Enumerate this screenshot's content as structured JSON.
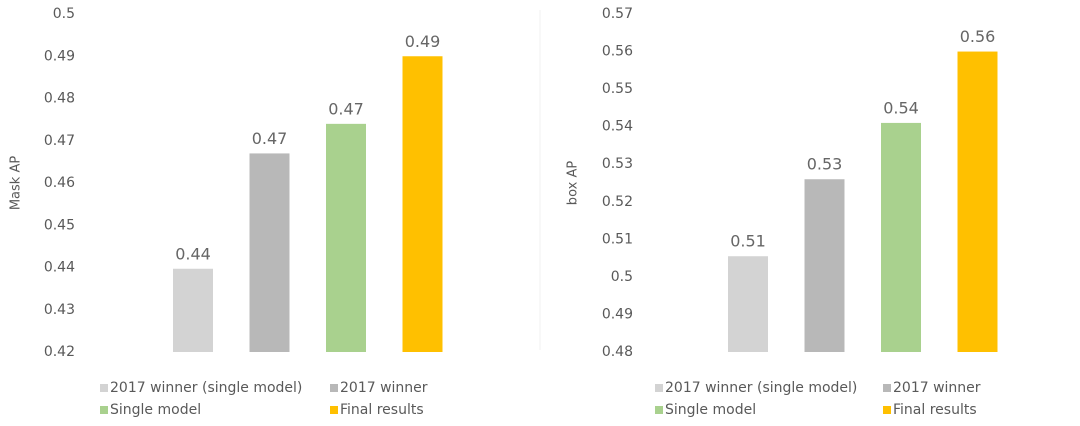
{
  "chart_data": [
    {
      "type": "bar",
      "y_label": "Mask AP",
      "ylim": [
        0.42,
        0.5
      ],
      "yticks": [
        0.42,
        0.43,
        0.44,
        0.45,
        0.46,
        0.47,
        0.48,
        0.49,
        0.5
      ],
      "grid": false,
      "legend": "bottom",
      "series": [
        {
          "name": "2017 winner (single model)",
          "color": "#d3d3d3",
          "values": [
            0.4397
          ],
          "value_labels": [
            "0.44"
          ]
        },
        {
          "name": "2017 winner",
          "color": "#b8b8b8",
          "values": [
            0.467
          ],
          "value_labels": [
            "0.47"
          ]
        },
        {
          "name": "Single model",
          "color": "#a9d18e",
          "values": [
            0.474
          ],
          "value_labels": [
            "0.47"
          ]
        },
        {
          "name": "Final results",
          "color": "#ffc000",
          "values": [
            0.49
          ],
          "value_labels": [
            "0.49"
          ]
        }
      ]
    },
    {
      "type": "bar",
      "y_label": "box AP",
      "ylim": [
        0.48,
        0.57
      ],
      "yticks": [
        0.48,
        0.49,
        0.5,
        0.51,
        0.52,
        0.53,
        0.54,
        0.55,
        0.56,
        0.57
      ],
      "grid": false,
      "legend": "bottom",
      "series": [
        {
          "name": "2017 winner (single model)",
          "color": "#d3d3d3",
          "values": [
            0.5055
          ],
          "value_labels": [
            "0.51"
          ]
        },
        {
          "name": "2017 winner",
          "color": "#b8b8b8",
          "values": [
            0.526
          ],
          "value_labels": [
            "0.53"
          ]
        },
        {
          "name": "Single model",
          "color": "#a9d18e",
          "values": [
            0.541
          ],
          "value_labels": [
            "0.54"
          ]
        },
        {
          "name": "Final results",
          "color": "#ffc000",
          "values": [
            0.56
          ],
          "value_labels": [
            "0.56"
          ]
        }
      ]
    }
  ]
}
